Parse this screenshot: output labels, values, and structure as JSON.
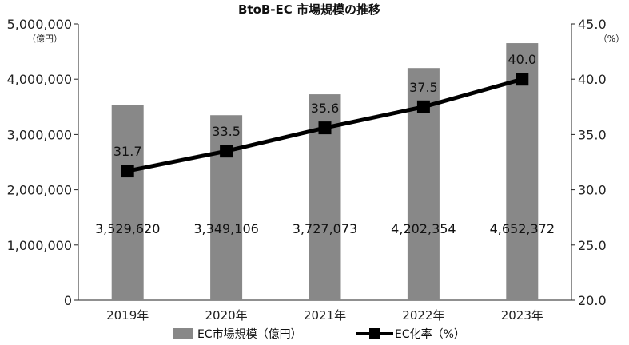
{
  "chart_data": {
    "type": "bar",
    "title": "BtoB-EC 市場規模の推移",
    "categories": [
      "2019年",
      "2020年",
      "2021年",
      "2022年",
      "2023年"
    ],
    "y_left": {
      "unit": "（億円）",
      "ylim": [
        0,
        5000000
      ],
      "ticks": [
        {
          "value": 0,
          "label": "0"
        },
        {
          "value": 1000000,
          "label": "1,000,000"
        },
        {
          "value": 2000000,
          "label": "2,000,000"
        },
        {
          "value": 3000000,
          "label": "3,000,000"
        },
        {
          "value": 4000000,
          "label": "4,000,000"
        },
        {
          "value": 5000000,
          "label": "5,000,000"
        }
      ]
    },
    "y_right": {
      "unit": "（%）",
      "ylim": [
        20.0,
        45.0
      ],
      "ticks": [
        {
          "value": 20,
          "label": "20.0"
        },
        {
          "value": 25,
          "label": "25.0"
        },
        {
          "value": 30,
          "label": "30.0"
        },
        {
          "value": 35,
          "label": "35.0"
        },
        {
          "value": 40,
          "label": "40.0"
        },
        {
          "value": 45,
          "label": "45.0"
        }
      ]
    },
    "series": [
      {
        "name": "EC市場規模（億円）",
        "kind": "bar",
        "axis": "left",
        "color": "#888888",
        "values": [
          3529620,
          3349106,
          3727073,
          4202354,
          4652372
        ],
        "labels": [
          "3,529,620",
          "3,349,106",
          "3,727,073",
          "4,202,354",
          "4,652,372"
        ]
      },
      {
        "name": "EC化率（%）",
        "kind": "line",
        "axis": "right",
        "color": "#000000",
        "values": [
          31.7,
          33.5,
          35.6,
          37.5,
          40.0
        ],
        "labels": [
          "31.7",
          "33.5",
          "35.6",
          "37.5",
          "40.0"
        ]
      }
    ],
    "legend": "bottom-center",
    "grid": false
  }
}
